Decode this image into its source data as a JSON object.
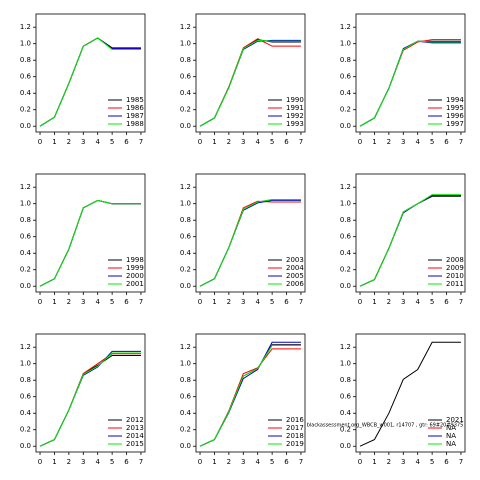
{
  "chart_data": [
    {
      "type": "line",
      "x": [
        0,
        1,
        2,
        3,
        4,
        5,
        6,
        7
      ],
      "xlim": [
        -0.28,
        7.28
      ],
      "ylim": [
        -0.07,
        1.36
      ],
      "xticks": [
        0,
        1,
        2,
        3,
        4,
        5,
        6,
        7
      ],
      "yticks": [
        {
          "value": 0,
          "label": "0.0"
        },
        {
          "value": 0.2,
          "label": "0.2"
        },
        {
          "value": 0.4,
          "label": "0.4"
        },
        {
          "value": 0.6,
          "label": "0.6"
        },
        {
          "value": 0.8,
          "label": "0.8"
        },
        {
          "value": 1,
          "label": "1.0"
        },
        {
          "value": 1.2,
          "label": "1.2"
        }
      ],
      "legend": "lower right",
      "series": [
        {
          "name": "1985",
          "color": "#000000",
          "values": [
            0,
            0.11,
            0.52,
            0.97,
            1.07,
            0.95,
            0.95,
            0.95
          ]
        },
        {
          "name": "1986",
          "color": "#ff0000",
          "values": [
            0,
            0.11,
            0.52,
            0.97,
            1.07,
            0.94,
            0.94,
            0.94
          ]
        },
        {
          "name": "1987",
          "color": "#0000cd",
          "values": [
            0,
            0.11,
            0.52,
            0.97,
            1.07,
            0.94,
            0.94,
            0.94
          ]
        },
        {
          "name": "1988",
          "color": "#00ee00",
          "values": [
            0,
            0.11,
            0.52,
            0.97,
            1.07,
            0.93,
            0.93,
            0.93
          ]
        }
      ]
    },
    {
      "type": "line",
      "x": [
        0,
        1,
        2,
        3,
        4,
        5,
        6,
        7
      ],
      "xlim": [
        -0.28,
        7.28
      ],
      "ylim": [
        -0.07,
        1.36
      ],
      "xticks": [
        0,
        1,
        2,
        3,
        4,
        5,
        6,
        7
      ],
      "yticks": [
        {
          "value": 0,
          "label": "0.0"
        },
        {
          "value": 0.2,
          "label": "0.2"
        },
        {
          "value": 0.4,
          "label": "0.4"
        },
        {
          "value": 0.6,
          "label": "0.6"
        },
        {
          "value": 0.8,
          "label": "0.8"
        },
        {
          "value": 1,
          "label": "1.0"
        },
        {
          "value": 1.2,
          "label": "1.2"
        }
      ],
      "legend": "lower right",
      "series": [
        {
          "name": "1990",
          "color": "#000000",
          "values": [
            0,
            0.1,
            0.47,
            0.94,
            1.05,
            1.02,
            1.02,
            1.02
          ]
        },
        {
          "name": "1991",
          "color": "#ff0000",
          "values": [
            0,
            0.1,
            0.48,
            0.95,
            1.06,
            0.97,
            0.97,
            0.97
          ]
        },
        {
          "name": "1992",
          "color": "#0000cd",
          "values": [
            0,
            0.1,
            0.47,
            0.93,
            1.03,
            1.04,
            1.04,
            1.04
          ]
        },
        {
          "name": "1993",
          "color": "#00ee00",
          "values": [
            0,
            0.1,
            0.47,
            0.94,
            1.04,
            1.03,
            1.03,
            1.03
          ]
        }
      ]
    },
    {
      "type": "line",
      "x": [
        0,
        1,
        2,
        3,
        4,
        5,
        6,
        7
      ],
      "xlim": [
        -0.28,
        7.28
      ],
      "ylim": [
        -0.07,
        1.36
      ],
      "xticks": [
        0,
        1,
        2,
        3,
        4,
        5,
        6,
        7
      ],
      "yticks": [
        {
          "value": 0,
          "label": "0.0"
        },
        {
          "value": 0.2,
          "label": "0.2"
        },
        {
          "value": 0.4,
          "label": "0.4"
        },
        {
          "value": 0.6,
          "label": "0.6"
        },
        {
          "value": 0.8,
          "label": "0.8"
        },
        {
          "value": 1,
          "label": "1.0"
        },
        {
          "value": 1.2,
          "label": "1.2"
        }
      ],
      "legend": "lower right",
      "series": [
        {
          "name": "1994",
          "color": "#000000",
          "values": [
            0,
            0.1,
            0.46,
            0.93,
            1.03,
            1.03,
            1.03,
            1.03
          ]
        },
        {
          "name": "1995",
          "color": "#ff0000",
          "values": [
            0,
            0.1,
            0.46,
            0.92,
            1.02,
            1.05,
            1.05,
            1.05
          ]
        },
        {
          "name": "1996",
          "color": "#0000cd",
          "values": [
            0,
            0.1,
            0.46,
            0.94,
            1.03,
            1.01,
            1.01,
            1.01
          ]
        },
        {
          "name": "1997",
          "color": "#00ee00",
          "values": [
            0,
            0.1,
            0.46,
            0.93,
            1.03,
            1.02,
            1.02,
            1.02
          ]
        }
      ]
    },
    {
      "type": "line",
      "x": [
        0,
        1,
        2,
        3,
        4,
        5,
        6,
        7
      ],
      "xlim": [
        -0.28,
        7.28
      ],
      "ylim": [
        -0.07,
        1.36
      ],
      "xticks": [
        0,
        1,
        2,
        3,
        4,
        5,
        6,
        7
      ],
      "yticks": [
        {
          "value": 0,
          "label": "0.0"
        },
        {
          "value": 0.2,
          "label": "0.2"
        },
        {
          "value": 0.4,
          "label": "0.4"
        },
        {
          "value": 0.6,
          "label": "0.6"
        },
        {
          "value": 0.8,
          "label": "0.8"
        },
        {
          "value": 1,
          "label": "1.0"
        },
        {
          "value": 1.2,
          "label": "1.2"
        }
      ],
      "legend": "lower right",
      "series": [
        {
          "name": "1998",
          "color": "#000000",
          "values": [
            0,
            0.09,
            0.45,
            0.95,
            1.04,
            1,
            1,
            1
          ]
        },
        {
          "name": "1999",
          "color": "#ff0000",
          "values": [
            0,
            0.09,
            0.45,
            0.95,
            1.04,
            1,
            1,
            1
          ]
        },
        {
          "name": "2000",
          "color": "#0000cd",
          "values": [
            0,
            0.09,
            0.45,
            0.95,
            1.04,
            1,
            1,
            1
          ]
        },
        {
          "name": "2001",
          "color": "#00ee00",
          "values": [
            0,
            0.09,
            0.45,
            0.95,
            1.04,
            1,
            1,
            1
          ]
        }
      ]
    },
    {
      "type": "line",
      "x": [
        0,
        1,
        2,
        3,
        4,
        5,
        6,
        7
      ],
      "xlim": [
        -0.28,
        7.28
      ],
      "ylim": [
        -0.07,
        1.36
      ],
      "xticks": [
        0,
        1,
        2,
        3,
        4,
        5,
        6,
        7
      ],
      "yticks": [
        {
          "value": 0,
          "label": "0.0"
        },
        {
          "value": 0.2,
          "label": "0.2"
        },
        {
          "value": 0.4,
          "label": "0.4"
        },
        {
          "value": 0.6,
          "label": "0.6"
        },
        {
          "value": 0.8,
          "label": "0.8"
        },
        {
          "value": 1,
          "label": "1.0"
        },
        {
          "value": 1.2,
          "label": "1.2"
        }
      ],
      "legend": "lower right",
      "series": [
        {
          "name": "2003",
          "color": "#000000",
          "values": [
            0,
            0.09,
            0.47,
            0.93,
            1.02,
            1.05,
            1.05,
            1.05
          ]
        },
        {
          "name": "2004",
          "color": "#ff0000",
          "values": [
            0,
            0.09,
            0.47,
            0.95,
            1.03,
            1.02,
            1.02,
            1.02
          ]
        },
        {
          "name": "2005",
          "color": "#0000cd",
          "values": [
            0,
            0.09,
            0.47,
            0.92,
            1.01,
            1.04,
            1.04,
            1.04
          ]
        },
        {
          "name": "2006",
          "color": "#00ee00",
          "values": [
            0,
            0.09,
            0.47,
            0.93,
            1.02,
            1.05,
            1.05,
            1.05
          ]
        }
      ]
    },
    {
      "type": "line",
      "x": [
        0,
        1,
        2,
        3,
        4,
        5,
        6,
        7
      ],
      "xlim": [
        -0.28,
        7.28
      ],
      "ylim": [
        -0.07,
        1.36
      ],
      "xticks": [
        0,
        1,
        2,
        3,
        4,
        5,
        6,
        7
      ],
      "yticks": [
        {
          "value": 0,
          "label": "0.0"
        },
        {
          "value": 0.2,
          "label": "0.2"
        },
        {
          "value": 0.4,
          "label": "0.4"
        },
        {
          "value": 0.6,
          "label": "0.6"
        },
        {
          "value": 0.8,
          "label": "0.8"
        },
        {
          "value": 1,
          "label": "1.0"
        },
        {
          "value": 1.2,
          "label": "1.2"
        }
      ],
      "legend": "lower right",
      "series": [
        {
          "name": "2008",
          "color": "#000000",
          "values": [
            0,
            0.08,
            0.46,
            0.9,
            1,
            1.09,
            1.09,
            1.09
          ]
        },
        {
          "name": "2009",
          "color": "#ff0000",
          "values": [
            0,
            0.08,
            0.46,
            0.9,
            1,
            1.1,
            1.1,
            1.1
          ]
        },
        {
          "name": "2010",
          "color": "#0000cd",
          "values": [
            0,
            0.08,
            0.46,
            0.89,
            1,
            1.1,
            1.1,
            1.1
          ]
        },
        {
          "name": "2011",
          "color": "#00ee00",
          "values": [
            0,
            0.08,
            0.46,
            0.9,
            1,
            1.11,
            1.11,
            1.11
          ]
        }
      ]
    },
    {
      "type": "line",
      "x": [
        0,
        1,
        2,
        3,
        4,
        5,
        6,
        7
      ],
      "xlim": [
        -0.28,
        7.28
      ],
      "ylim": [
        -0.07,
        1.36
      ],
      "xticks": [
        0,
        1,
        2,
        3,
        4,
        5,
        6,
        7
      ],
      "yticks": [
        {
          "value": 0,
          "label": "0.0"
        },
        {
          "value": 0.2,
          "label": "0.2"
        },
        {
          "value": 0.4,
          "label": "0.4"
        },
        {
          "value": 0.6,
          "label": "0.6"
        },
        {
          "value": 0.8,
          "label": "0.8"
        },
        {
          "value": 1,
          "label": "1.0"
        },
        {
          "value": 1.2,
          "label": "1.2"
        }
      ],
      "legend": "lower right",
      "series": [
        {
          "name": "2012",
          "color": "#000000",
          "values": [
            0,
            0.08,
            0.44,
            0.88,
            0.98,
            1.1,
            1.1,
            1.1
          ]
        },
        {
          "name": "2013",
          "color": "#ff0000",
          "values": [
            0,
            0.08,
            0.44,
            0.88,
            1,
            1.12,
            1.12,
            1.12
          ]
        },
        {
          "name": "2014",
          "color": "#0000cd",
          "values": [
            0,
            0.08,
            0.44,
            0.86,
            0.96,
            1.15,
            1.15,
            1.15
          ]
        },
        {
          "name": "2015",
          "color": "#00ee00",
          "values": [
            0,
            0.08,
            0.44,
            0.87,
            0.97,
            1.13,
            1.13,
            1.13
          ]
        }
      ]
    },
    {
      "type": "line",
      "x": [
        0,
        1,
        2,
        3,
        4,
        5,
        6,
        7
      ],
      "xlim": [
        -0.28,
        7.28
      ],
      "ylim": [
        -0.07,
        1.36
      ],
      "xticks": [
        0,
        1,
        2,
        3,
        4,
        5,
        6,
        7
      ],
      "yticks": [
        {
          "value": 0,
          "label": "0.0"
        },
        {
          "value": 0.2,
          "label": "0.2"
        },
        {
          "value": 0.4,
          "label": "0.4"
        },
        {
          "value": 0.6,
          "label": "0.6"
        },
        {
          "value": 0.8,
          "label": "0.8"
        },
        {
          "value": 1,
          "label": "1.0"
        },
        {
          "value": 1.2,
          "label": "1.2"
        }
      ],
      "legend": "lower right",
      "annotation": "blackassessment.org_WBCB_w001, r14707 , gtr: 69#20#9375",
      "series": [
        {
          "name": "2016",
          "color": "#000000",
          "values": [
            0,
            0.08,
            0.42,
            0.85,
            0.94,
            1.23,
            1.23,
            1.23
          ]
        },
        {
          "name": "2017",
          "color": "#ff0000",
          "values": [
            0,
            0.08,
            0.43,
            0.88,
            0.95,
            1.18,
            1.18,
            1.18
          ]
        },
        {
          "name": "2018",
          "color": "#0000cd",
          "values": [
            0,
            0.08,
            0.41,
            0.82,
            0.93,
            1.26,
            1.26,
            1.26
          ]
        },
        {
          "name": "2019",
          "color": "#00ee00",
          "values": [
            0,
            0.08,
            0.42,
            0.85,
            0.94,
            1.22,
            1.22,
            1.22
          ]
        }
      ]
    },
    {
      "type": "line",
      "x": [
        0,
        1,
        2,
        3,
        4,
        5,
        6,
        7
      ],
      "xlim": [
        -0.28,
        7.28
      ],
      "ylim": [
        -0.07,
        1.36
      ],
      "xticks": [
        0,
        1,
        2,
        3,
        4,
        5,
        6,
        7
      ],
      "yticks": [
        {
          "value": 0,
          "label": "0.0"
        },
        {
          "value": 0.2,
          "label": "0.2"
        },
        {
          "value": 0.4,
          "label": "0.4"
        },
        {
          "value": 0.6,
          "label": "0.6"
        },
        {
          "value": 0.8,
          "label": "0.8"
        },
        {
          "value": 1,
          "label": "1.0"
        },
        {
          "value": 1.2,
          "label": "1.2"
        }
      ],
      "legend": "lower right",
      "series": [
        {
          "name": "2021",
          "color": "#000000",
          "values": [
            0,
            0.08,
            0.4,
            0.81,
            0.93,
            1.26,
            1.26,
            1.26
          ]
        },
        {
          "name": "NA",
          "color": "#ff0000",
          "values": [
            null,
            null,
            null,
            null,
            null,
            null,
            null,
            null
          ]
        },
        {
          "name": "NA",
          "color": "#0000cd",
          "values": [
            null,
            null,
            null,
            null,
            null,
            null,
            null,
            null
          ]
        },
        {
          "name": "NA",
          "color": "#00ee00",
          "values": [
            null,
            null,
            null,
            null,
            null,
            null,
            null,
            null
          ]
        }
      ]
    }
  ]
}
